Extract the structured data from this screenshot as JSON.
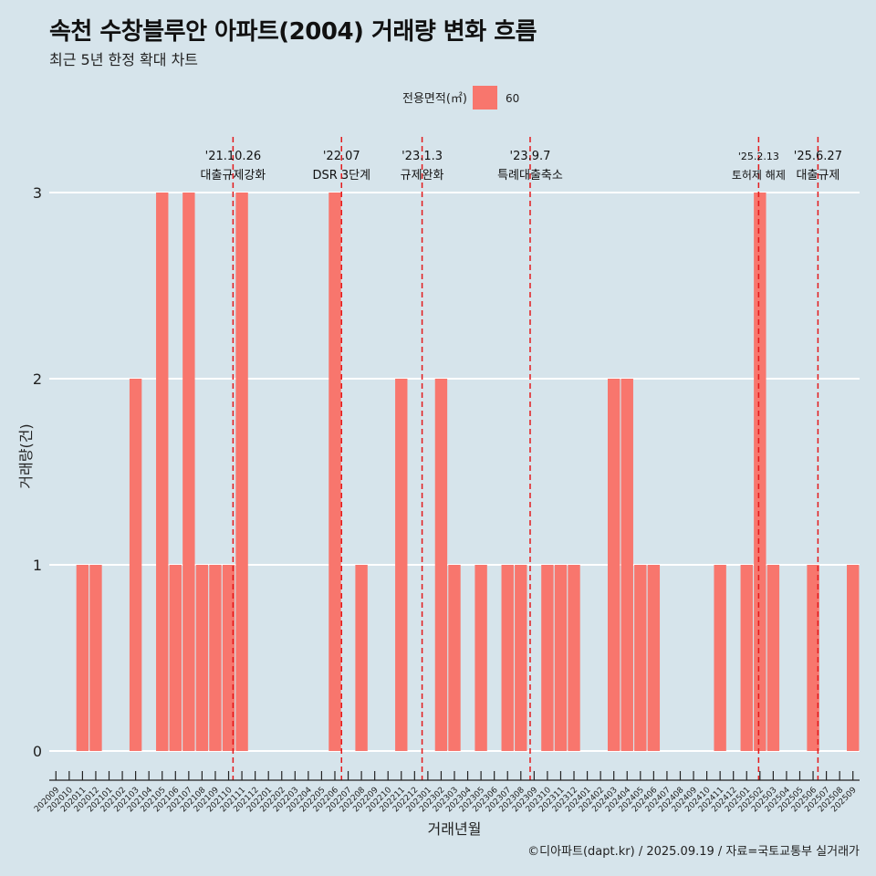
{
  "chart_data": {
    "type": "bar",
    "title": "속천 수창블루안 아파트(2004) 거래량 변화 흐름",
    "subtitle": "최근 5년 한정 확대 차트",
    "xlabel": "거래년월",
    "ylabel": "거래량(건)",
    "ylim": [
      0,
      3
    ],
    "yticks": [
      "0",
      "1",
      "2",
      "3"
    ],
    "grid": true,
    "legend": {
      "title": "전용면적(㎡)",
      "placement": "top",
      "entries": [
        {
          "label": "60",
          "color": "#f8766d"
        }
      ]
    },
    "series": [
      {
        "name": "60",
        "color": "#f8766d"
      }
    ],
    "categories": [
      "202009",
      "202010",
      "202011",
      "202012",
      "202101",
      "202102",
      "202103",
      "202104",
      "202105",
      "202106",
      "202107",
      "202108",
      "202109",
      "202110",
      "202111",
      "202112",
      "202201",
      "202202",
      "202203",
      "202204",
      "202205",
      "202206",
      "202207",
      "202208",
      "202209",
      "202210",
      "202211",
      "202212",
      "202301",
      "202302",
      "202303",
      "202304",
      "202305",
      "202306",
      "202307",
      "202308",
      "202309",
      "202310",
      "202311",
      "202312",
      "202401",
      "202402",
      "202403",
      "202404",
      "202405",
      "202406",
      "202407",
      "202408",
      "202409",
      "202410",
      "202411",
      "202412",
      "202501",
      "202502",
      "202503",
      "202504",
      "202505",
      "202506",
      "202507",
      "202508",
      "202509"
    ],
    "values": [
      0,
      0,
      1,
      1,
      0,
      0,
      2,
      0,
      3,
      1,
      3,
      1,
      1,
      1,
      3,
      0,
      0,
      0,
      0,
      0,
      0,
      3,
      0,
      1,
      0,
      0,
      2,
      0,
      0,
      2,
      1,
      0,
      1,
      0,
      1,
      1,
      0,
      1,
      1,
      1,
      0,
      0,
      2,
      2,
      1,
      1,
      0,
      0,
      0,
      0,
      1,
      0,
      1,
      3,
      1,
      0,
      0,
      1,
      0,
      0,
      1
    ],
    "annotations": [
      {
        "date": "'21.10.26",
        "label": "대출규제강화",
        "month": "202110",
        "day": 26
      },
      {
        "date": "'22.07",
        "label": "DSR 3단계",
        "month": "202207",
        "day": 1
      },
      {
        "date": "'23.1.3",
        "label": "규제완화",
        "month": "202301",
        "day": 3
      },
      {
        "date": "'23.9.7",
        "label": "특례대출축소",
        "month": "202309",
        "day": 7
      },
      {
        "date": "'25.2.13",
        "label": "토허제 해제",
        "month": "202502",
        "day": 13
      },
      {
        "date": "'25.6.27",
        "label": "대출규제",
        "month": "202506",
        "day": 27
      }
    ]
  },
  "caption": "©디아파트(dapt.kr) / 2025.09.19 / 자료=국토교통부 실거래가"
}
